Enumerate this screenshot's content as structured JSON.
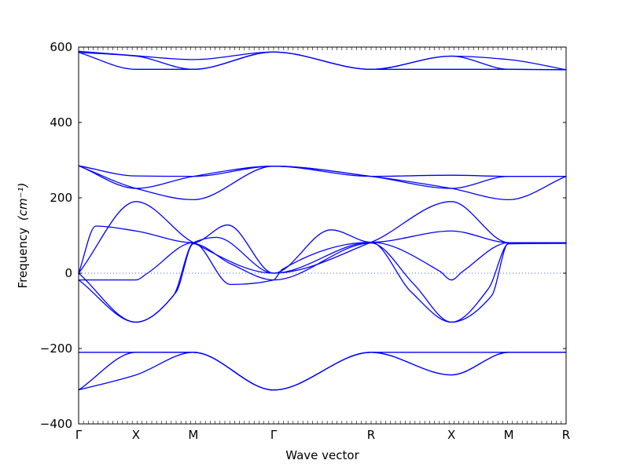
{
  "chart_data": {
    "type": "line",
    "title": "",
    "xlabel": "Wave vector",
    "ylabel": "Frequency",
    "ylabel_unit": "(cm⁻¹)",
    "ylim": [
      -400,
      600
    ],
    "yticks": [
      "600",
      "400",
      "200",
      "0",
      "−200",
      "−400"
    ],
    "ytick_values": [
      600,
      400,
      200,
      0,
      -200,
      -400
    ],
    "xlim": [
      0,
      8.5
    ],
    "xticks": [
      {
        "label": "Γ",
        "x": 0
      },
      {
        "label": "X",
        "x": 1
      },
      {
        "label": "M",
        "x": 2
      },
      {
        "label": "Γ",
        "x": 3.4
      },
      {
        "label": "R",
        "x": 5.1
      },
      {
        "label": "X",
        "x": 6.5
      },
      {
        "label": "M",
        "x": 7.5
      },
      {
        "label": "R",
        "x": 8.5
      }
    ],
    "zero_line": true,
    "line_color": "#0000ff",
    "series": [
      {
        "points": [
          [
            0,
            589
          ],
          [
            1,
            577
          ],
          [
            2,
            567
          ],
          [
            3.4,
            587
          ],
          [
            5.1,
            541
          ],
          [
            6.5,
            576
          ],
          [
            7.5,
            567
          ],
          [
            8.5,
            540
          ]
        ]
      },
      {
        "points": [
          [
            0,
            586
          ],
          [
            1,
            576
          ],
          [
            2,
            541
          ],
          [
            3.4,
            587
          ],
          [
            5.1,
            541
          ],
          [
            6.5,
            576
          ],
          [
            7.5,
            541
          ],
          [
            8.5,
            540
          ]
        ]
      },
      {
        "points": [
          [
            0,
            586
          ],
          [
            1,
            541
          ],
          [
            2,
            541
          ],
          [
            3.4,
            587
          ],
          [
            5.1,
            541
          ],
          [
            6.5,
            541
          ],
          [
            7.5,
            541
          ],
          [
            8.5,
            540
          ]
        ]
      },
      {
        "points": [
          [
            0,
            285
          ],
          [
            1,
            258
          ],
          [
            2,
            257
          ],
          [
            3.4,
            284
          ],
          [
            5.1,
            257
          ],
          [
            6.5,
            260
          ],
          [
            7.5,
            257
          ],
          [
            8.5,
            257
          ]
        ]
      },
      {
        "points": [
          [
            0,
            285
          ],
          [
            1,
            225
          ],
          [
            2,
            257
          ],
          [
            3.4,
            284
          ],
          [
            5.1,
            257
          ],
          [
            6.5,
            225
          ],
          [
            7.5,
            257
          ],
          [
            8.5,
            257
          ]
        ]
      },
      {
        "points": [
          [
            0,
            285
          ],
          [
            1,
            225
          ],
          [
            2,
            195
          ],
          [
            3.4,
            284
          ],
          [
            5.1,
            257
          ],
          [
            6.5,
            225
          ],
          [
            7.5,
            195
          ],
          [
            8.5,
            257
          ]
        ]
      },
      {
        "points": [
          [
            0,
            0
          ],
          [
            1,
            190
          ],
          [
            2,
            81
          ],
          [
            3.4,
            0
          ],
          [
            5.1,
            82
          ],
          [
            6.5,
            190
          ],
          [
            7.5,
            81
          ],
          [
            8.5,
            81
          ]
        ]
      },
      {
        "points": [
          [
            0,
            0
          ],
          [
            0.3,
            125
          ],
          [
            1,
            112
          ],
          [
            2,
            81
          ],
          [
            2.6,
            128
          ],
          [
            3.4,
            0
          ],
          [
            4.4,
            115
          ],
          [
            5.1,
            82
          ],
          [
            6.5,
            112
          ],
          [
            7.5,
            81
          ],
          [
            8.5,
            81
          ]
        ]
      },
      {
        "points": [
          [
            0,
            0
          ],
          [
            1,
            -130
          ],
          [
            1.65,
            -60
          ],
          [
            2,
            81
          ],
          [
            2.4,
            95
          ],
          [
            3.4,
            0
          ],
          [
            5.1,
            82
          ],
          [
            5.8,
            -50
          ],
          [
            6.5,
            -130
          ],
          [
            7.2,
            -60
          ],
          [
            7.5,
            81
          ],
          [
            8.5,
            81
          ]
        ]
      },
      {
        "points": [
          [
            0,
            -18
          ],
          [
            1,
            -130
          ],
          [
            1.7,
            -50
          ],
          [
            2,
            78
          ],
          [
            2.65,
            25
          ],
          [
            3.4,
            -18
          ],
          [
            5.1,
            80
          ],
          [
            5.85,
            -30
          ],
          [
            6.5,
            -130
          ],
          [
            7.15,
            -40
          ],
          [
            7.5,
            78
          ],
          [
            8.5,
            79
          ]
        ]
      },
      {
        "points": [
          [
            0,
            -18
          ],
          [
            1,
            -18
          ],
          [
            1.2,
            0
          ],
          [
            2,
            81
          ],
          [
            2.65,
            -30
          ],
          [
            3.4,
            -18
          ],
          [
            3.55,
            10
          ],
          [
            5.1,
            82
          ],
          [
            6.3,
            5
          ],
          [
            6.5,
            -18
          ],
          [
            6.7,
            5
          ],
          [
            7.5,
            81
          ],
          [
            8.5,
            81
          ]
        ]
      },
      {
        "points": [
          [
            0,
            -210
          ],
          [
            1,
            -210
          ],
          [
            2,
            -210
          ],
          [
            3.4,
            -310
          ],
          [
            5.1,
            -210
          ],
          [
            6.5,
            -210
          ],
          [
            7.5,
            -210
          ],
          [
            8.5,
            -210
          ]
        ]
      },
      {
        "points": [
          [
            0,
            -310
          ],
          [
            1,
            -210
          ],
          [
            2,
            -210
          ],
          [
            3.4,
            -310
          ],
          [
            5.1,
            -210
          ],
          [
            6.5,
            -270
          ],
          [
            7.5,
            -210
          ],
          [
            8.5,
            -210
          ]
        ]
      },
      {
        "points": [
          [
            0,
            -310
          ],
          [
            1,
            -270
          ],
          [
            2,
            -210
          ],
          [
            3.4,
            -310
          ],
          [
            5.1,
            -210
          ],
          [
            6.5,
            -270
          ],
          [
            7.5,
            -210
          ],
          [
            8.5,
            -210
          ]
        ]
      }
    ]
  }
}
